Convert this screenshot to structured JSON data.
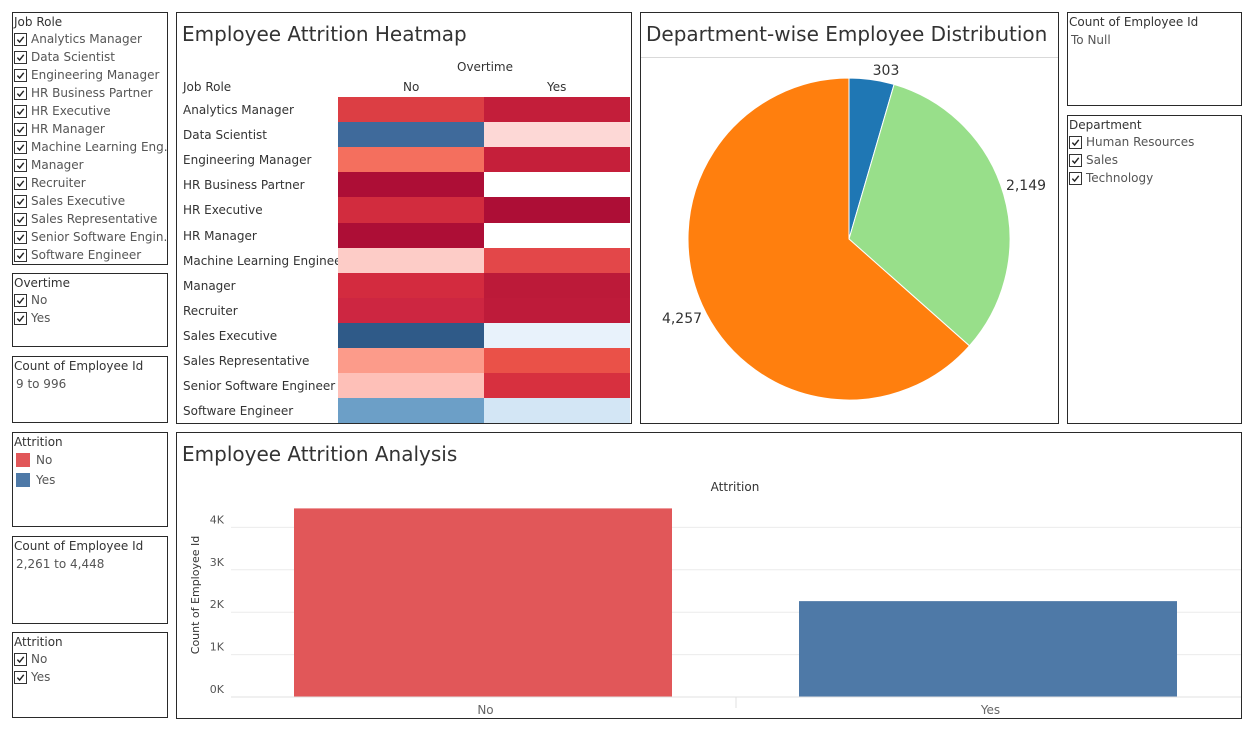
{
  "filters": {
    "job_role": {
      "title": "Job Role",
      "items": [
        "Analytics Manager",
        "Data Scientist",
        "Engineering Manager",
        "HR Business Partner",
        "HR Executive",
        "HR Manager",
        "Machine Learning Eng..",
        "Manager",
        "Recruiter",
        "Sales Executive",
        "Sales Representative",
        "Senior Software Engin..",
        "Software Engineer"
      ]
    },
    "overtime": {
      "title": "Overtime",
      "items": [
        "No",
        "Yes"
      ]
    },
    "count_range_1": {
      "title": "Count of Employee Id",
      "value": "9 to 996"
    },
    "attrition_legend": {
      "title": "Attrition",
      "items": [
        {
          "label": "No",
          "color": "#e15759"
        },
        {
          "label": "Yes",
          "color": "#4e79a7"
        }
      ]
    },
    "count_range_2": {
      "title": "Count of Employee Id",
      "value": "2,261 to 4,448"
    },
    "attrition_filter": {
      "title": "Attrition",
      "items": [
        "No",
        "Yes"
      ]
    },
    "count_range_3": {
      "title": "Count of Employee Id",
      "value": "To Null"
    },
    "department": {
      "title": "Department",
      "items": [
        "Human Resources",
        "Sales",
        "Technology"
      ]
    }
  },
  "heatmap": {
    "title": "Employee Attrition Heatmap",
    "row_header": "Job Role",
    "col_group": "Overtime",
    "columns": [
      "No",
      "Yes"
    ],
    "rows": [
      "Analytics Manager",
      "Data Scientist",
      "Engineering Manager",
      "HR Business Partner",
      "HR Executive",
      "HR Manager",
      "Machine Learning Engineer",
      "Manager",
      "Recruiter",
      "Sales Executive",
      "Sales Representative",
      "Senior Software Engineer",
      "Software Engineer"
    ],
    "colors": [
      [
        "#dc3e44",
        "#c31e3a"
      ],
      [
        "#3f6a9b",
        "#fdd8d6"
      ],
      [
        "#f46f5e",
        "#c51f3a"
      ],
      [
        "#ad0e36",
        "#ffffff"
      ],
      [
        "#d22c3e",
        "#ad0e36"
      ],
      [
        "#ad0e36",
        "#ffffff"
      ],
      [
        "#fdccc7",
        "#e34749"
      ],
      [
        "#d32b3f",
        "#bc1a39"
      ],
      [
        "#cd2641",
        "#be1b3a"
      ],
      [
        "#2f5a88",
        "#e8f2fb"
      ],
      [
        "#fc9b8a",
        "#ea5148"
      ],
      [
        "#fec0b8",
        "#d7303f"
      ],
      [
        "#6c9fc7",
        "#d3e6f5"
      ]
    ]
  },
  "pie": {
    "title": "Department-wise Employee Distribution",
    "labels": [
      "303",
      "2,149",
      "4,257"
    ]
  },
  "bar": {
    "title": "Employee Attrition Analysis",
    "col_header": "Attrition",
    "ylabel": "Count of Employee Id",
    "yticks": [
      "0K",
      "1K",
      "2K",
      "3K",
      "4K"
    ]
  },
  "chart_data": [
    {
      "type": "pie",
      "title": "Department-wise Employee Distribution",
      "slices": [
        {
          "category": "Human Resources",
          "value": 303,
          "color": "#1f77b4"
        },
        {
          "category": "Sales",
          "value": 2149,
          "color": "#98df8a"
        },
        {
          "category": "Technology",
          "value": 4257,
          "color": "#ff7f0e"
        }
      ]
    },
    {
      "type": "bar",
      "title": "Employee Attrition Analysis",
      "categories": [
        "No",
        "Yes"
      ],
      "values": [
        4448,
        2261
      ],
      "colors": [
        "#e15759",
        "#4e79a7"
      ],
      "xlabel": "Attrition",
      "ylabel": "Count of Employee Id",
      "ylim": [
        0,
        4500
      ],
      "grid": true
    },
    {
      "type": "heatmap",
      "title": "Employee Attrition Heatmap",
      "x": [
        "No",
        "Yes"
      ],
      "y": [
        "Analytics Manager",
        "Data Scientist",
        "Engineering Manager",
        "HR Business Partner",
        "HR Executive",
        "HR Manager",
        "Machine Learning Engineer",
        "Manager",
        "Recruiter",
        "Sales Executive",
        "Sales Representative",
        "Senior Software Engineer",
        "Software Engineer"
      ],
      "xlabel": "Overtime",
      "ylabel": "Job Role"
    }
  ]
}
